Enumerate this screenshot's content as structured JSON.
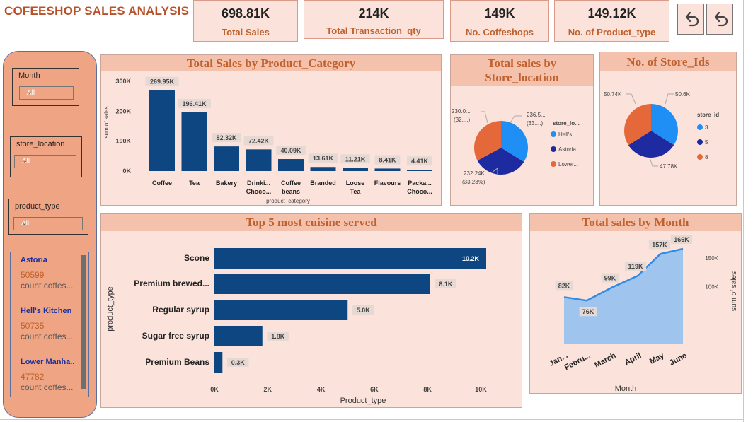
{
  "header": {
    "title": "COFEESHOP SALES ANALYSIS"
  },
  "kpis": [
    {
      "value": "698.81K",
      "label": "Total Sales"
    },
    {
      "value": "214K",
      "label": "Total Transaction_qty"
    },
    {
      "value": "149K",
      "label": "No. Coffeshops"
    },
    {
      "value": "149.12K",
      "label": "No. of Product_type"
    }
  ],
  "nav": {
    "back_icon": "undo-arrow-icon",
    "reset_icon": "undo-arrow-icon"
  },
  "slicers": {
    "month": {
      "label": "Month",
      "value": "All"
    },
    "store_location": {
      "label": "store_location",
      "value": "All"
    },
    "product_type": {
      "label": "product_type",
      "value": "All"
    }
  },
  "store_cards": [
    {
      "name": "Astoria",
      "value": "50599",
      "sub": "count coffes..."
    },
    {
      "name": "Hell's Kitchen",
      "value": "50735",
      "sub": "count coffes..."
    },
    {
      "name": "Lower Manha..",
      "value": "47782",
      "sub": "count coffes..."
    }
  ],
  "colors": {
    "bar": "#0d4681",
    "pie_orange": "#e4683a",
    "pie_blue": "#1f8ef5",
    "pie_navy": "#1d2aa0",
    "area": "#9fc4ee",
    "line": "#2f8ce6",
    "accent": "#c0612d"
  },
  "chart_data": [
    {
      "type": "bar",
      "title": "Total Sales by Product_Category",
      "xlabel": "product_category",
      "ylabel": "sum of sales",
      "ylim": [
        0,
        300000
      ],
      "yticks": [
        "0K",
        "100K",
        "200K",
        "300K"
      ],
      "categories": [
        "Coffee",
        "Tea",
        "Bakery",
        "Drinki... Choco...",
        "Coffee beans",
        "Branded",
        "Loose Tea",
        "Flavours",
        "Packa... Choco..."
      ],
      "values": [
        269950,
        196410,
        82320,
        72420,
        40090,
        13610,
        11210,
        8410,
        4410
      ],
      "labels": [
        "269.95K",
        "196.41K",
        "82.32K",
        "72.42K",
        "40.09K",
        "13.61K",
        "11.21K",
        "8.41K",
        "4.41K"
      ]
    },
    {
      "type": "pie",
      "title": "Total sales by Store_location",
      "legend_title": "store_lo...",
      "categories": [
        "Hell's ...",
        "Astoria",
        "Lower..."
      ],
      "values": [
        236.5,
        232.24,
        230.0
      ],
      "slice_labels": [
        "236.5... (33....)",
        "232.24K (33.23%)",
        "230.0... (32....)"
      ]
    },
    {
      "type": "pie",
      "title": "No. of Store_Ids",
      "legend_title": "store_id",
      "categories": [
        "3",
        "5",
        "8"
      ],
      "values": [
        50.6,
        47.78,
        50.74
      ],
      "slice_labels": [
        "50.6K",
        "47.78K",
        "50.74K"
      ]
    },
    {
      "type": "bar",
      "orientation": "horizontal",
      "title": "Top 5 most cuisine served",
      "xlabel": "Product_type",
      "ylabel": "product_type",
      "xlim": [
        0,
        10200
      ],
      "xticks": [
        "0K",
        "2K",
        "4K",
        "6K",
        "8K",
        "10K"
      ],
      "categories": [
        "Scone",
        "Premium brewed...",
        "Regular syrup",
        "Sugar free syrup",
        "Premium Beans"
      ],
      "values": [
        10200,
        8100,
        5000,
        1800,
        300
      ],
      "labels": [
        "10.2K",
        "8.1K",
        "5.0K",
        "1.8K",
        "0.3K"
      ]
    },
    {
      "type": "area",
      "title": "Total sales by Month",
      "xlabel": "Month",
      "ylabel": "sum of sales",
      "ylim": [
        0,
        166000
      ],
      "yticks": [
        "100K",
        "150K"
      ],
      "categories": [
        "Jan...",
        "Febru...",
        "March",
        "April",
        "May",
        "June"
      ],
      "values": [
        82000,
        76000,
        99000,
        119000,
        157000,
        166000
      ],
      "labels": [
        "82K",
        "76K",
        "99K",
        "119K",
        "157K",
        "166K"
      ]
    }
  ]
}
